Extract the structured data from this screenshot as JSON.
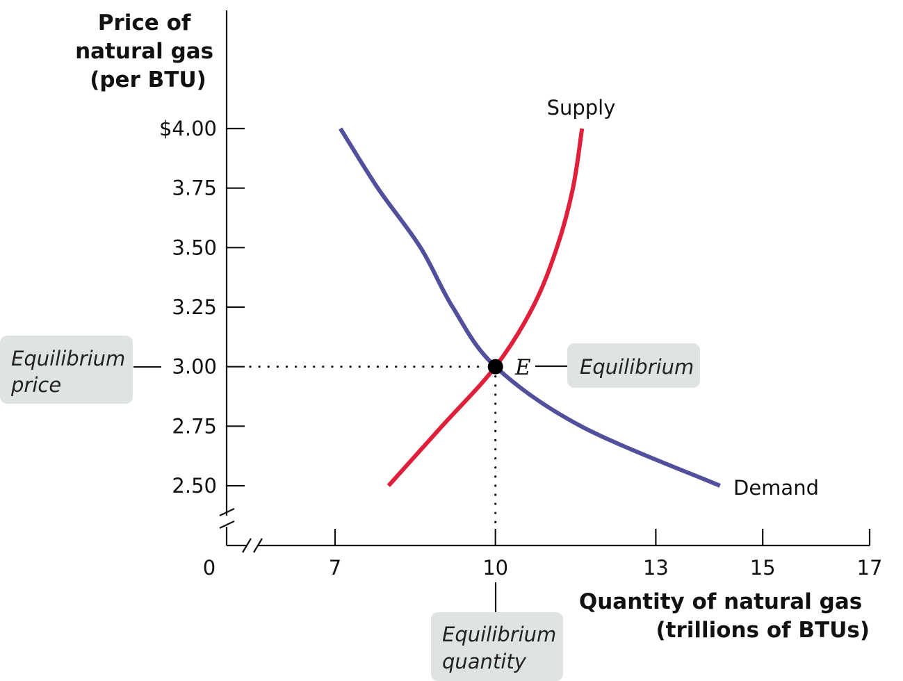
{
  "chart_data": {
    "type": "line",
    "ylabel_lines": [
      "Price of",
      "natural gas",
      "(per BTU)"
    ],
    "xlabel_lines": [
      "Quantity of natural gas",
      "(trillions of BTUs)"
    ],
    "origin_label": "0",
    "x_ticks": [
      {
        "value": 7,
        "label": "7"
      },
      {
        "value": 10,
        "label": "10"
      },
      {
        "value": 13,
        "label": "13"
      },
      {
        "value": 15,
        "label": "15"
      },
      {
        "value": 17,
        "label": "17"
      }
    ],
    "y_ticks": [
      {
        "value": 4.0,
        "label": "$4.00"
      },
      {
        "value": 3.75,
        "label": "3.75"
      },
      {
        "value": 3.5,
        "label": "3.50"
      },
      {
        "value": 3.25,
        "label": "3.25"
      },
      {
        "value": 3.0,
        "label": "3.00"
      },
      {
        "value": 2.75,
        "label": "2.75"
      },
      {
        "value": 2.5,
        "label": "2.50"
      }
    ],
    "series": [
      {
        "name": "Supply",
        "color": "#e0203a",
        "points": [
          [
            8.0,
            2.5
          ],
          [
            9.0,
            2.75
          ],
          [
            10.0,
            3.0
          ],
          [
            10.7,
            3.25
          ],
          [
            11.15,
            3.5
          ],
          [
            11.45,
            3.75
          ],
          [
            11.62,
            4.0
          ]
        ]
      },
      {
        "name": "Demand",
        "color": "#524f9c",
        "points": [
          [
            7.1,
            4.0
          ],
          [
            7.8,
            3.75
          ],
          [
            8.6,
            3.5
          ],
          [
            9.2,
            3.25
          ],
          [
            10.0,
            3.0
          ],
          [
            11.6,
            2.75
          ],
          [
            14.2,
            2.5
          ]
        ]
      }
    ],
    "equilibrium": {
      "x": 10,
      "y": 3.0,
      "label": "E"
    },
    "callouts": {
      "price": [
        "Equilibrium",
        "price"
      ],
      "point": [
        "Equilibrium"
      ],
      "quantity": [
        "Equilibrium",
        "quantity"
      ]
    }
  }
}
